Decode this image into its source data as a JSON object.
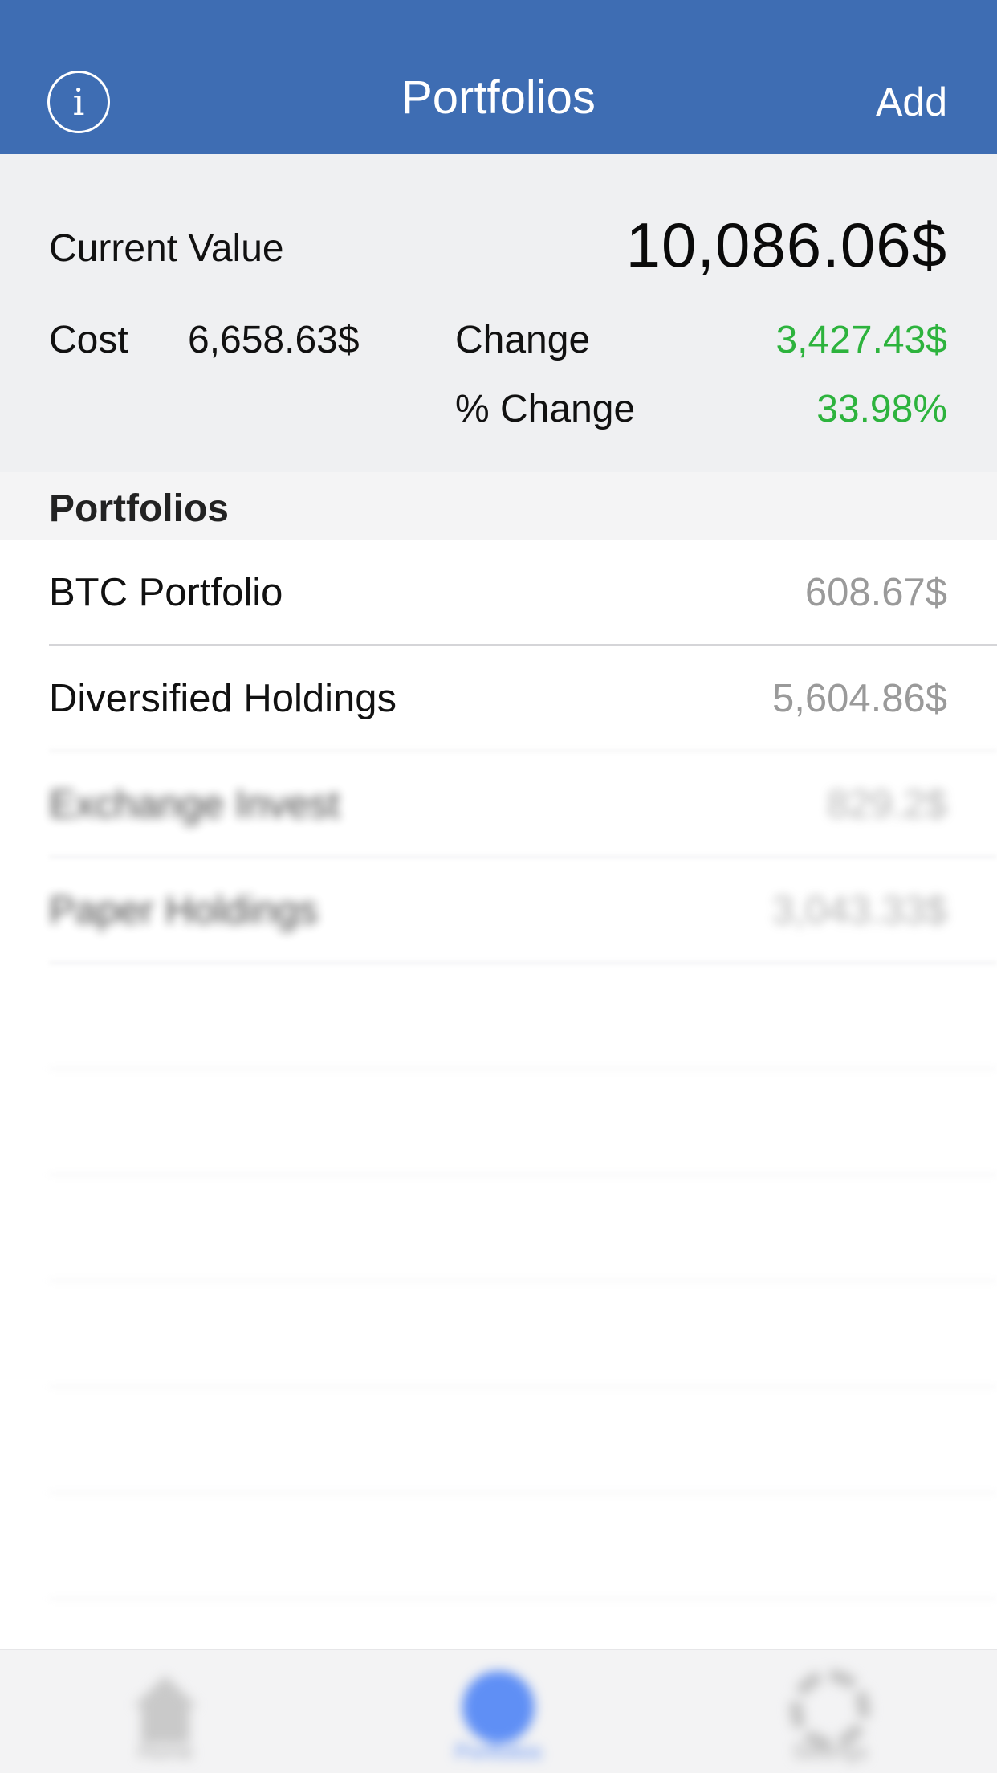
{
  "navbar": {
    "info_icon": "info-icon",
    "info_glyph": "i",
    "title": "Portfolios",
    "add_label": "Add",
    "background": "#3e6db3"
  },
  "summary": {
    "current_value_label": "Current Value",
    "current_value": "10,086.06$",
    "cost_label": "Cost",
    "cost_value": "6,658.63$",
    "change_label": "Change",
    "change_value": "3,427.43$",
    "pct_change_label": "% Change",
    "pct_change_value": "33.98%",
    "positive_color": "#2db33d"
  },
  "section": {
    "title": "Portfolios"
  },
  "portfolios": [
    {
      "name": "BTC Portfolio",
      "value": "608.67$"
    },
    {
      "name": "Diversified Holdings",
      "value": "5,604.86$"
    },
    {
      "name": "Exchange Invest",
      "value": "829.2$"
    },
    {
      "name": "Paper Holdings",
      "value": "3,043.33$"
    }
  ],
  "tabbar": {
    "tabs": [
      {
        "icon": "home-icon",
        "label": "Home"
      },
      {
        "icon": "pie-chart-icon",
        "label": "Portfolios",
        "active": true
      },
      {
        "icon": "gear-icon",
        "label": "Settings"
      }
    ],
    "active_color": "#5f8ff5"
  }
}
